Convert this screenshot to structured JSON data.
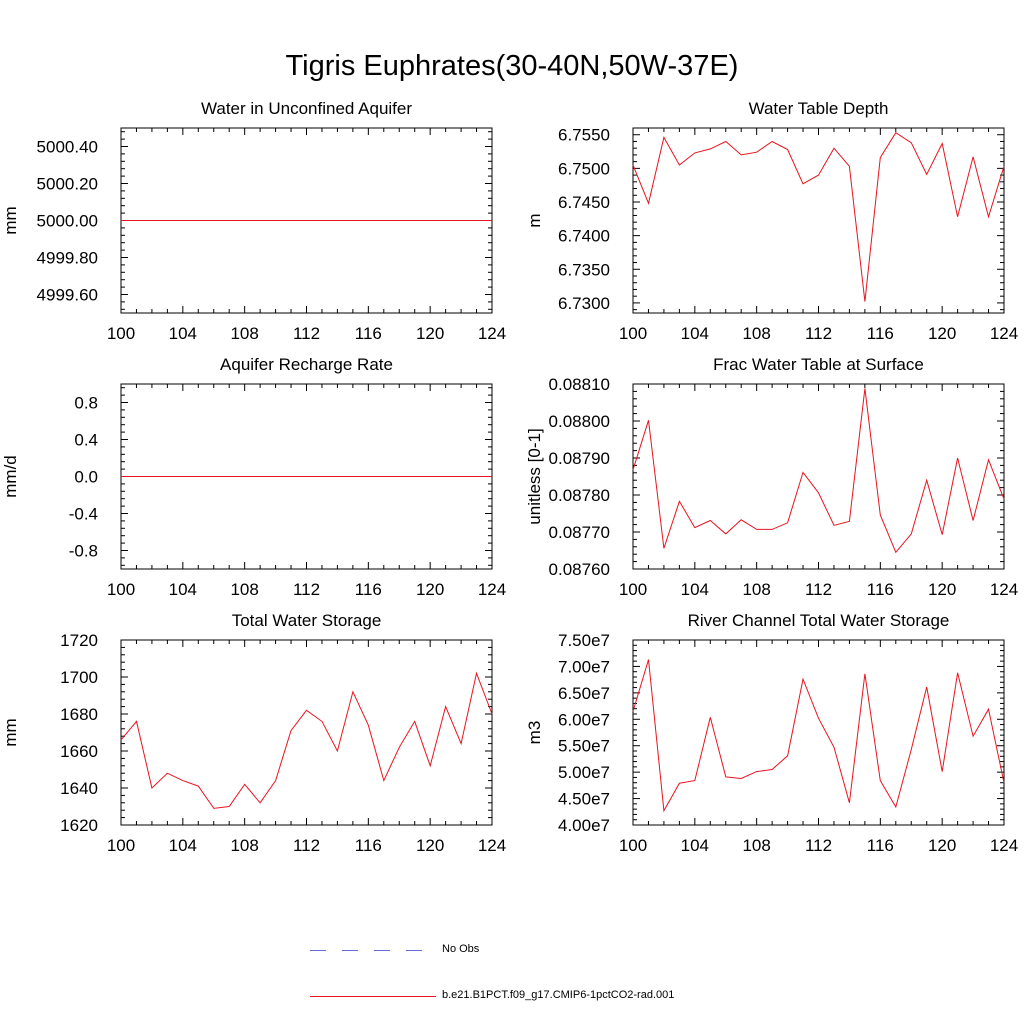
{
  "title": "Tigris Euphrates(30-40N,50W-37E)",
  "legend": {
    "obs_label": "No Obs",
    "model_label": "b.e21.B1PCT.f09_g17.CMIP6-1pctCO2-rad.001",
    "obs_color": "#6a6ad0",
    "model_color": "#e8141e"
  },
  "chart_data": [
    {
      "type": "line",
      "title": "Water in Unconfined Aquifer",
      "ylabel": "mm",
      "xlim": [
        100,
        124
      ],
      "ylim": [
        4999.5,
        5000.5
      ],
      "xticks": [
        100,
        104,
        108,
        112,
        116,
        120,
        124
      ],
      "yticks": [
        4999.6,
        4999.8,
        5000.0,
        5000.2,
        5000.4
      ],
      "ytick_labels": [
        "4999.60",
        "4999.80",
        "5000.00",
        "5000.20",
        "5000.40"
      ],
      "x": [
        100,
        124
      ],
      "y": [
        5000.0,
        5000.0
      ]
    },
    {
      "type": "line",
      "title": "Water Table Depth",
      "ylabel": "m",
      "xlim": [
        100,
        124
      ],
      "ylim": [
        6.7285,
        6.756
      ],
      "xticks": [
        100,
        104,
        108,
        112,
        116,
        120,
        124
      ],
      "yticks": [
        6.73,
        6.735,
        6.74,
        6.745,
        6.75,
        6.755
      ],
      "ytick_labels": [
        "6.7300",
        "6.7350",
        "6.7400",
        "6.7450",
        "6.7500",
        "6.7550"
      ],
      "x": [
        100,
        101,
        102,
        103,
        104,
        105,
        106,
        107,
        108,
        109,
        110,
        111,
        112,
        113,
        114,
        115,
        116,
        117,
        118,
        119,
        120,
        121,
        122,
        123,
        124
      ],
      "y": [
        6.7505,
        6.7448,
        6.7546,
        6.7505,
        6.7523,
        6.7529,
        6.754,
        6.752,
        6.7524,
        6.754,
        6.7528,
        6.7477,
        6.749,
        6.753,
        6.7503,
        6.7302,
        6.7516,
        6.7553,
        6.7538,
        6.7491,
        6.7537,
        6.7428,
        6.7517,
        6.7428,
        6.7503
      ]
    },
    {
      "type": "line",
      "title": "Aquifer Recharge Rate",
      "ylabel": "mm/d",
      "xlim": [
        100,
        124
      ],
      "ylim": [
        -1.0,
        1.0
      ],
      "xticks": [
        100,
        104,
        108,
        112,
        116,
        120,
        124
      ],
      "yticks": [
        -0.8,
        -0.4,
        0.0,
        0.4,
        0.8
      ],
      "ytick_labels": [
        "-0.8",
        "-0.4",
        "0.0",
        "0.4",
        "0.8"
      ],
      "x": [
        100,
        124
      ],
      "y": [
        0.0,
        0.0
      ]
    },
    {
      "type": "line",
      "title": "Frac Water Table at Surface",
      "ylabel": "unitless [0-1]",
      "xlim": [
        100,
        124
      ],
      "ylim": [
        0.0876,
        0.0881
      ],
      "xticks": [
        100,
        104,
        108,
        112,
        116,
        120,
        124
      ],
      "yticks": [
        0.0876,
        0.0877,
        0.0878,
        0.0879,
        0.088,
        0.0881
      ],
      "ytick_labels": [
        "0.08760",
        "0.08770",
        "0.08780",
        "0.08790",
        "0.08800",
        "0.08810"
      ],
      "x": [
        100,
        101,
        102,
        103,
        104,
        105,
        106,
        107,
        108,
        109,
        110,
        111,
        112,
        113,
        114,
        115,
        116,
        117,
        118,
        119,
        120,
        121,
        122,
        123,
        124
      ],
      "y": [
        0.087868,
        0.088002,
        0.087656,
        0.087783,
        0.087712,
        0.087731,
        0.087695,
        0.087733,
        0.087707,
        0.087707,
        0.087725,
        0.087861,
        0.087806,
        0.087718,
        0.087729,
        0.088088,
        0.087746,
        0.087645,
        0.087695,
        0.08784,
        0.087693,
        0.0879,
        0.087731,
        0.087895,
        0.087789
      ]
    },
    {
      "type": "line",
      "title": "Total Water Storage",
      "ylabel": "mm",
      "xlim": [
        100,
        124
      ],
      "ylim": [
        1620,
        1720
      ],
      "xticks": [
        100,
        104,
        108,
        112,
        116,
        120,
        124
      ],
      "yticks": [
        1620,
        1640,
        1660,
        1680,
        1700,
        1720
      ],
      "ytick_labels": [
        "1620",
        "1640",
        "1660",
        "1680",
        "1700",
        "1720"
      ],
      "x": [
        100,
        101,
        102,
        103,
        104,
        105,
        106,
        107,
        108,
        109,
        110,
        111,
        112,
        113,
        114,
        115,
        116,
        117,
        118,
        119,
        120,
        121,
        122,
        123,
        124
      ],
      "y": [
        1666,
        1676,
        1640,
        1648,
        1644,
        1641,
        1629,
        1630,
        1642,
        1632,
        1644,
        1671,
        1682,
        1676,
        1660,
        1692,
        1674,
        1644,
        1662,
        1676,
        1652,
        1684,
        1664,
        1702,
        1680
      ]
    },
    {
      "type": "line",
      "title": "River Channel Total Water Storage",
      "ylabel": "m3",
      "xlim": [
        100,
        124
      ],
      "ylim": [
        40000000.0,
        75000000.0
      ],
      "xticks": [
        100,
        104,
        108,
        112,
        116,
        120,
        124
      ],
      "yticks": [
        40000000.0,
        45000000.0,
        50000000.0,
        55000000.0,
        60000000.0,
        65000000.0,
        70000000.0,
        75000000.0
      ],
      "ytick_labels": [
        "4.00e7",
        "4.50e7",
        "5.00e7",
        "5.50e7",
        "6.00e7",
        "6.50e7",
        "7.00e7",
        "7.50e7"
      ],
      "x": [
        100,
        101,
        102,
        103,
        104,
        105,
        106,
        107,
        108,
        109,
        110,
        111,
        112,
        113,
        114,
        115,
        116,
        117,
        118,
        119,
        120,
        121,
        122,
        123,
        124
      ],
      "y": [
        61500000.0,
        71300000.0,
        42700000.0,
        47900000.0,
        48400000.0,
        60400000.0,
        49100000.0,
        48800000.0,
        50100000.0,
        50500000.0,
        53100000.0,
        67600000.0,
        60200000.0,
        54700000.0,
        44200000.0,
        68600000.0,
        48400000.0,
        43400000.0,
        54300000.0,
        66100000.0,
        50100000.0,
        68800000.0,
        56800000.0,
        61900000.0,
        48000000.0
      ]
    }
  ]
}
